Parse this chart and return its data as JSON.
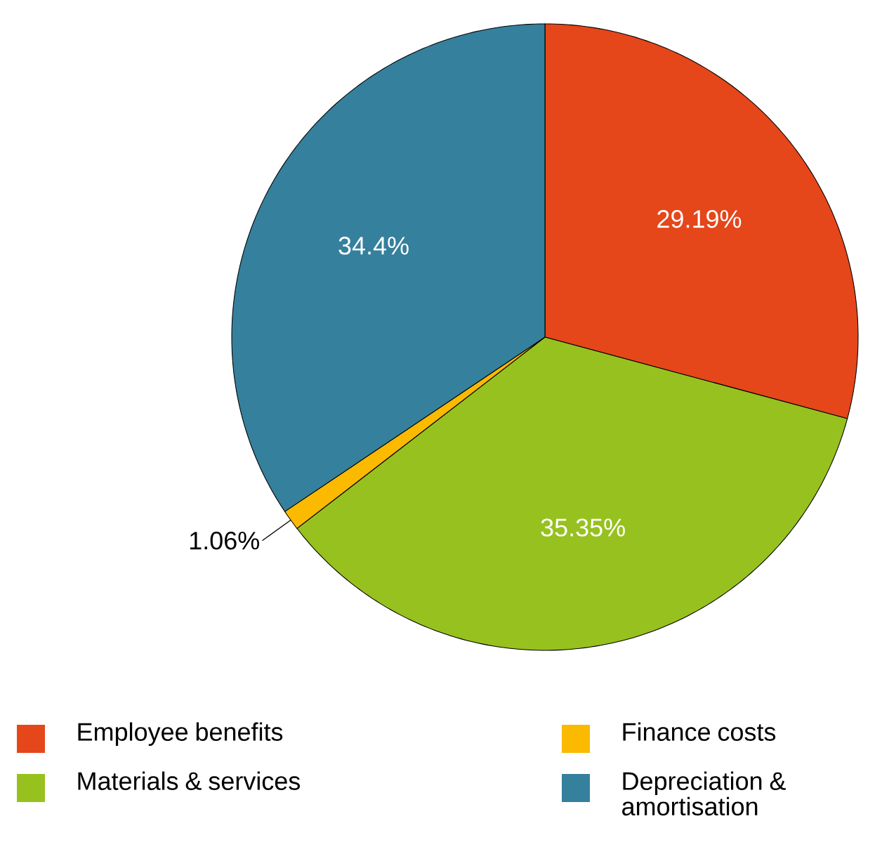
{
  "chart_data": {
    "type": "pie",
    "categories": [
      "Employee benefits",
      "Materials & services",
      "Finance costs",
      "Depreciation & amortisation"
    ],
    "values": [
      29.19,
      35.35,
      1.06,
      34.4
    ],
    "value_labels": [
      "29.19%",
      "35.35%",
      "1.06%",
      "34.4%"
    ],
    "colors": [
      "#e5461a",
      "#97c11f",
      "#fbb900",
      "#35809c"
    ],
    "legend": "bottom"
  }
}
